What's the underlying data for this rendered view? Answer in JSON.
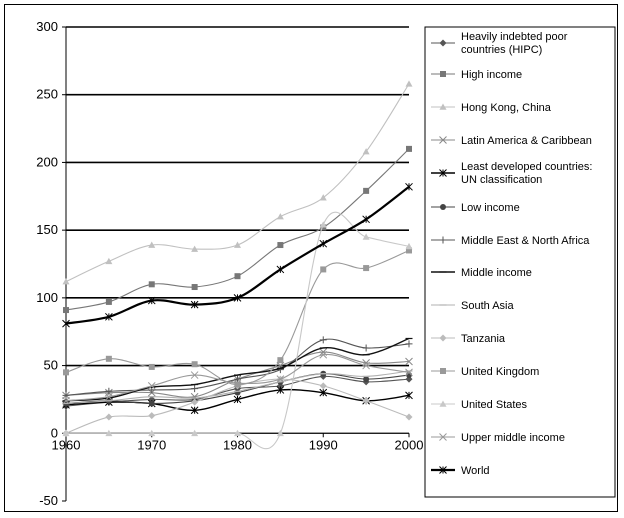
{
  "chart_data": {
    "type": "line",
    "title": "",
    "xlabel": "",
    "ylabel": "",
    "x": [
      1960,
      1965,
      1970,
      1975,
      1980,
      1985,
      1990,
      1995,
      2000
    ],
    "xlim": [
      1960,
      2000
    ],
    "ylim": [
      -50,
      300
    ],
    "yticks": [
      -50,
      0,
      50,
      100,
      150,
      200,
      250,
      300
    ],
    "xticks": [
      1960,
      1970,
      1980,
      1990,
      2000
    ],
    "grid": "horizontal major lines",
    "legend_position": "right",
    "series": [
      {
        "name": "Heavily indebted poor countries (HIPC)",
        "color": "#555555",
        "marker": "diamond",
        "values": [
          20,
          23,
          25,
          25,
          33,
          35,
          42,
          38,
          40
        ]
      },
      {
        "name": "High income",
        "color": "#777777",
        "marker": "square",
        "values": [
          91,
          97,
          110,
          108,
          116,
          139,
          152,
          179,
          210
        ]
      },
      {
        "name": "Hong Kong, China",
        "color": "#c0c0c0",
        "marker": "triangle",
        "values": [
          112,
          127,
          139,
          136,
          139,
          160,
          174,
          208,
          258
        ]
      },
      {
        "name": "Latin America & Caribbean",
        "color": "#888888",
        "marker": "x",
        "values": [
          28,
          30,
          30,
          27,
          40,
          50,
          60,
          52,
          53
        ]
      },
      {
        "name": "Least developed countries: UN classification",
        "color": "#000000",
        "marker": "asterisk",
        "values": [
          21,
          23,
          22,
          17,
          25,
          32,
          30,
          24,
          28
        ]
      },
      {
        "name": "Low income",
        "color": "#444444",
        "marker": "circle",
        "values": [
          22,
          24,
          22,
          24,
          30,
          38,
          44,
          40,
          43
        ]
      },
      {
        "name": "Middle East & North Africa",
        "color": "#555555",
        "marker": "plus",
        "values": [
          28,
          31,
          32,
          33,
          40,
          47,
          69,
          63,
          66
        ]
      },
      {
        "name": "Middle income",
        "color": "#111111",
        "marker": "dash",
        "values": [
          24,
          26,
          34,
          36,
          43,
          48,
          63,
          58,
          70
        ]
      },
      {
        "name": "South Asia",
        "color": "#b0b0b0",
        "marker": "dash",
        "values": [
          22,
          24,
          27,
          26,
          31,
          38,
          44,
          42,
          46
        ]
      },
      {
        "name": "Tanzania",
        "color": "#bbbbbb",
        "marker": "diamond",
        "values": [
          0,
          12,
          13,
          23,
          35,
          40,
          35,
          24,
          12
        ]
      },
      {
        "name": "United Kingdom",
        "color": "#999999",
        "marker": "square",
        "values": [
          45,
          55,
          49,
          51,
          36,
          54,
          121,
          122,
          135
        ]
      },
      {
        "name": "United States",
        "color": "#c8c8c8",
        "marker": "triangle",
        "values": [
          0,
          0,
          0,
          0,
          0,
          0,
          154,
          145,
          138
        ]
      },
      {
        "name": "Upper middle income",
        "color": "#999999",
        "marker": "x",
        "values": [
          24,
          27,
          35,
          43,
          37,
          40,
          58,
          50,
          45
        ]
      },
      {
        "name": "World",
        "color": "#000000",
        "marker": "asterisk",
        "values": [
          81,
          86,
          98,
          95,
          100,
          121,
          140,
          158,
          182
        ]
      }
    ]
  }
}
